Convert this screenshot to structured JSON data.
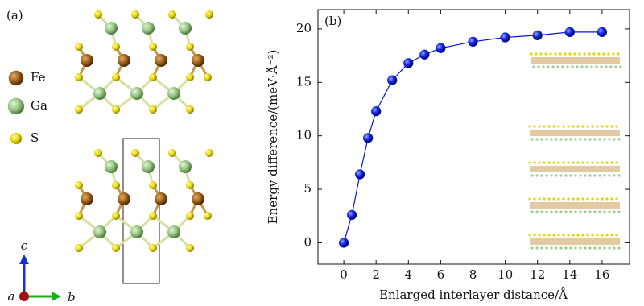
{
  "structure": {
    "label": "(a)",
    "legend": [
      {
        "name": "Fe",
        "color": "#9a5a12"
      },
      {
        "name": "Ga",
        "color": "#8fc07a"
      },
      {
        "name": "S",
        "color": "#e6d400"
      }
    ],
    "axes": [
      {
        "name": "c",
        "color": "#1a2fd0"
      },
      {
        "name": "a",
        "color": "#a01010"
      },
      {
        "name": "b",
        "color": "#18b018"
      }
    ]
  },
  "chart_data": {
    "type": "line",
    "label": "(b)",
    "x_label": "Enlarged interlayer distance/Å",
    "y_label": "Energy difference/(meV·Å⁻²)",
    "x": [
      0,
      0.5,
      1,
      1.5,
      2,
      3,
      4,
      5,
      6,
      8,
      10,
      12,
      14,
      16
    ],
    "series": [
      {
        "color": "#0a14d8",
        "values": [
          0,
          2.6,
          6.4,
          9.8,
          12.3,
          15.2,
          16.8,
          17.6,
          18.2,
          18.8,
          19.2,
          19.4,
          19.7,
          19.7
        ]
      }
    ],
    "xlim": [
      -1.6,
      17.7
    ],
    "ylim": [
      -2,
      21.8
    ],
    "xticks": [
      0,
      2,
      4,
      6,
      8,
      10,
      12,
      14,
      16
    ],
    "yticks": [
      0,
      5,
      10,
      15,
      20
    ]
  }
}
